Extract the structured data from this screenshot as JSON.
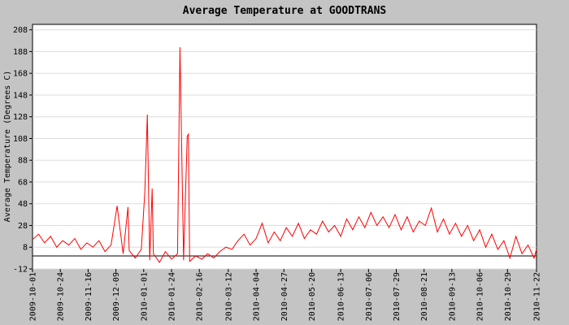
{
  "chart_data": {
    "type": "line",
    "title": "Average Temperature at GOODTRANS",
    "y_label": "Average Temperature (Degrees C)",
    "color": "#ff0000",
    "grid": true,
    "xlim": [
      "2009-10-01",
      "2010-11-22"
    ],
    "xticks": [
      "2009-10-01",
      "2009-10-24",
      "2009-11-16",
      "2009-12-09",
      "2010-01-01",
      "2010-01-24",
      "2010-02-16",
      "2010-03-12",
      "2010-04-04",
      "2010-04-27",
      "2010-05-20",
      "2010-06-13",
      "2010-07-06",
      "2010-07-29",
      "2010-08-21",
      "2010-09-13",
      "2010-10-06",
      "2010-10-29",
      "2010-11-22"
    ],
    "ylim": [
      -12,
      213
    ],
    "yticks": [
      -12,
      8,
      28,
      48,
      68,
      88,
      108,
      128,
      148,
      168,
      188,
      208
    ],
    "x": [
      "2009-10-01",
      "2009-10-06",
      "2009-10-11",
      "2009-10-16",
      "2009-10-21",
      "2009-10-26",
      "2009-10-31",
      "2009-11-05",
      "2009-11-10",
      "2009-11-15",
      "2009-11-20",
      "2009-11-25",
      "2009-11-30",
      "2009-12-05",
      "2009-12-10",
      "2009-12-15",
      "2009-12-19",
      "2009-12-20",
      "2009-12-25",
      "2009-12-30",
      "2010-01-02",
      "2010-01-04",
      "2010-01-06",
      "2010-01-08",
      "2010-01-09",
      "2010-01-14",
      "2010-01-19",
      "2010-01-24",
      "2010-01-29",
      "2010-01-31",
      "2010-02-03",
      "2010-02-06",
      "2010-02-07",
      "2010-02-08",
      "2010-02-13",
      "2010-02-18",
      "2010-02-23",
      "2010-02-28",
      "2010-03-05",
      "2010-03-10",
      "2010-03-15",
      "2010-03-20",
      "2010-03-25",
      "2010-03-30",
      "2010-04-04",
      "2010-04-09",
      "2010-04-14",
      "2010-04-19",
      "2010-04-24",
      "2010-04-29",
      "2010-05-04",
      "2010-05-09",
      "2010-05-14",
      "2010-05-19",
      "2010-05-24",
      "2010-05-29",
      "2010-06-03",
      "2010-06-08",
      "2010-06-13",
      "2010-06-18",
      "2010-06-23",
      "2010-06-28",
      "2010-07-03",
      "2010-07-08",
      "2010-07-13",
      "2010-07-18",
      "2010-07-23",
      "2010-07-28",
      "2010-08-02",
      "2010-08-07",
      "2010-08-12",
      "2010-08-17",
      "2010-08-22",
      "2010-08-27",
      "2010-09-01",
      "2010-09-06",
      "2010-09-11",
      "2010-09-16",
      "2010-09-21",
      "2010-09-26",
      "2010-10-01",
      "2010-10-06",
      "2010-10-11",
      "2010-10-16",
      "2010-10-21",
      "2010-10-26",
      "2010-10-31",
      "2010-11-05",
      "2010-11-10",
      "2010-11-15",
      "2010-11-20",
      "2010-11-22"
    ],
    "values": [
      15,
      20,
      12,
      18,
      8,
      14,
      10,
      16,
      6,
      12,
      8,
      14,
      4,
      10,
      46,
      2,
      45,
      5,
      -2,
      6,
      60,
      130,
      -4,
      62,
      2,
      -6,
      4,
      -3,
      2,
      192,
      -4,
      110,
      112,
      -5,
      0,
      -3,
      2,
      -2,
      4,
      8,
      6,
      14,
      20,
      10,
      16,
      30,
      12,
      22,
      14,
      26,
      18,
      30,
      16,
      24,
      20,
      32,
      22,
      28,
      18,
      34,
      24,
      36,
      26,
      40,
      28,
      36,
      26,
      38,
      24,
      36,
      22,
      32,
      28,
      44,
      22,
      34,
      20,
      30,
      18,
      28,
      14,
      24,
      8,
      20,
      6,
      14,
      -2,
      18,
      2,
      10,
      -2,
      6
    ]
  }
}
